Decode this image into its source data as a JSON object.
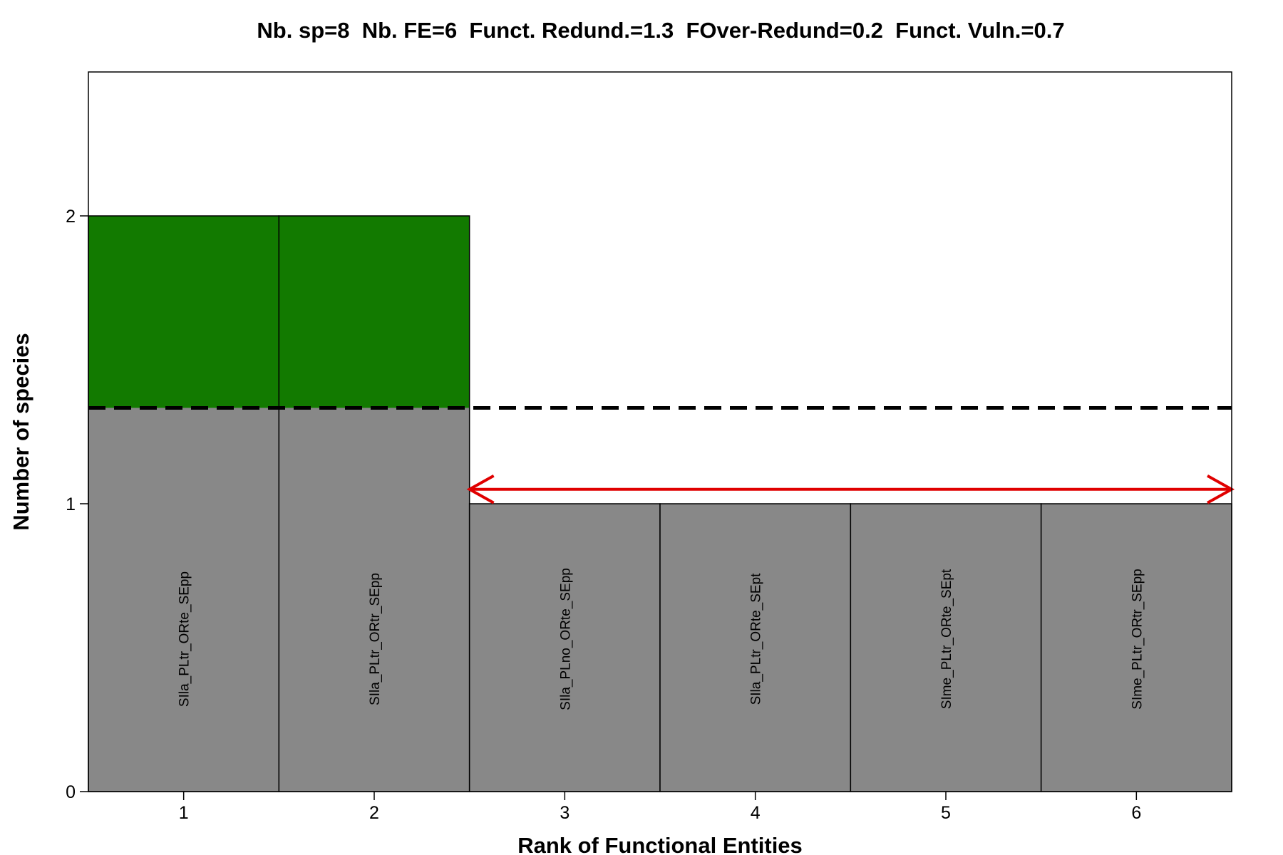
{
  "chart_data": {
    "type": "bar",
    "title": "Nb. sp=8  Nb. FE=6  Funct. Redund.=1.3  FOver-Redund=0.2  Funct. Vuln.=0.7",
    "xlabel": "Rank of Functional Entities",
    "ylabel": "Number of species",
    "categories": [
      "1",
      "2",
      "3",
      "4",
      "5",
      "6"
    ],
    "values": [
      2,
      2,
      1,
      1,
      1,
      1
    ],
    "bar_labels": [
      "SIla_PLtr_ORte_SEpp",
      "SIla_PLtr_ORtr_SEpp",
      "SIla_PLno_ORte_SEpp",
      "SIla_PLtr_ORte_SEpt",
      "SIme_PLtr_ORte_SEpt",
      "SIme_PLtr_ORtr_SEpp"
    ],
    "yticks": [
      0,
      1,
      2
    ],
    "ylim": [
      0,
      2.5
    ],
    "xlim": [
      0.5,
      6.5
    ],
    "mean_redundancy_line": 1.333,
    "vulnerability_arrow": {
      "from_rank": 2.5,
      "to_rank": 6.5,
      "y": 1.05
    },
    "colors": {
      "bar_base": "#888888",
      "bar_over_redundant": "#127A00",
      "mean_line": "#000000",
      "arrow": "#E00000"
    },
    "grid": false,
    "legend": "none"
  }
}
